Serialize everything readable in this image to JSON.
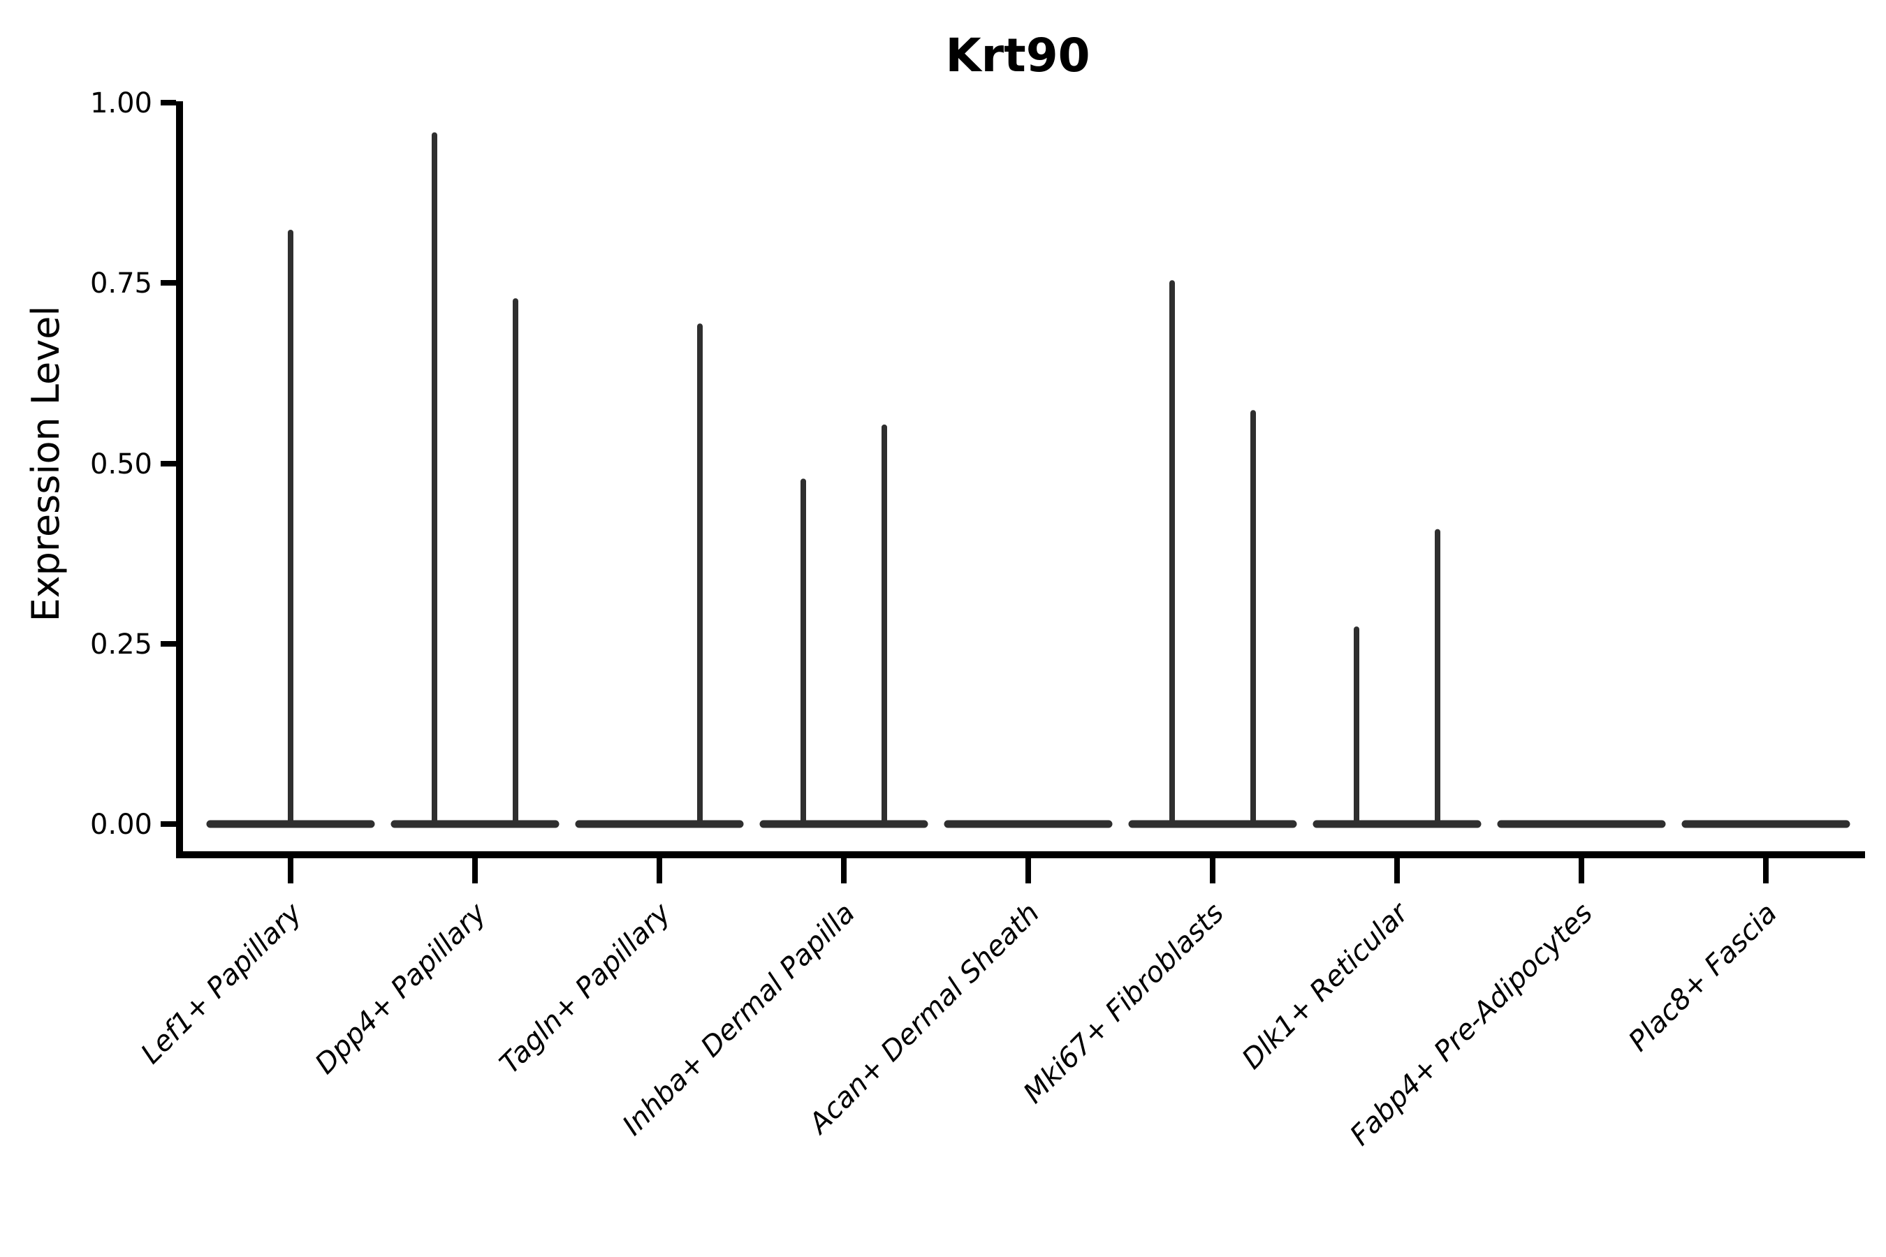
{
  "chart_data": {
    "type": "violin",
    "title": "Krt90",
    "xlabel": "",
    "ylabel": "Expression Level",
    "ylim": [
      0,
      1.0
    ],
    "grid": false,
    "legend": false,
    "background": "#ffffff",
    "colors": {
      "violin_stroke": "#2f2f2f",
      "axis": "#000000",
      "text": "#000000"
    },
    "yticks": [
      {
        "value": 0.0,
        "label": "0.00"
      },
      {
        "value": 0.25,
        "label": "0.25"
      },
      {
        "value": 0.5,
        "label": "0.50"
      },
      {
        "value": 0.75,
        "label": "0.75"
      },
      {
        "value": 1.0,
        "label": "1.00"
      }
    ],
    "note": "Each category shows a collapsed violin (flat bar at 0, most cells not expressing) with thin density spikes reaching the maximum expression value; spike position within the category is center, left or right.",
    "categories": [
      {
        "label": "Lef1+ Papillary",
        "violins": [
          {
            "position": "center",
            "peak": 0.82
          }
        ]
      },
      {
        "label": "Dpp4+ Papillary",
        "violins": [
          {
            "position": "left",
            "peak": 0.955
          },
          {
            "position": "right",
            "peak": 0.725
          }
        ]
      },
      {
        "label": "Tagln+ Papillary",
        "violins": [
          {
            "position": "right",
            "peak": 0.69
          }
        ]
      },
      {
        "label": "Inhba+ Dermal Papilla",
        "violins": [
          {
            "position": "left",
            "peak": 0.475
          },
          {
            "position": "right",
            "peak": 0.55
          }
        ]
      },
      {
        "label": "Acan+ Dermal Sheath",
        "violins": []
      },
      {
        "label": "Mki67+ Fibroblasts",
        "violins": [
          {
            "position": "left",
            "peak": 0.75
          },
          {
            "position": "right",
            "peak": 0.57
          }
        ]
      },
      {
        "label": "Dlk1+ Reticular",
        "violins": [
          {
            "position": "left",
            "peak": 0.27
          },
          {
            "position": "right",
            "peak": 0.405
          }
        ]
      },
      {
        "label": "Fabp4+ Pre-Adipocytes",
        "violins": []
      },
      {
        "label": "Plac8+ Fascia",
        "violins": []
      }
    ]
  }
}
